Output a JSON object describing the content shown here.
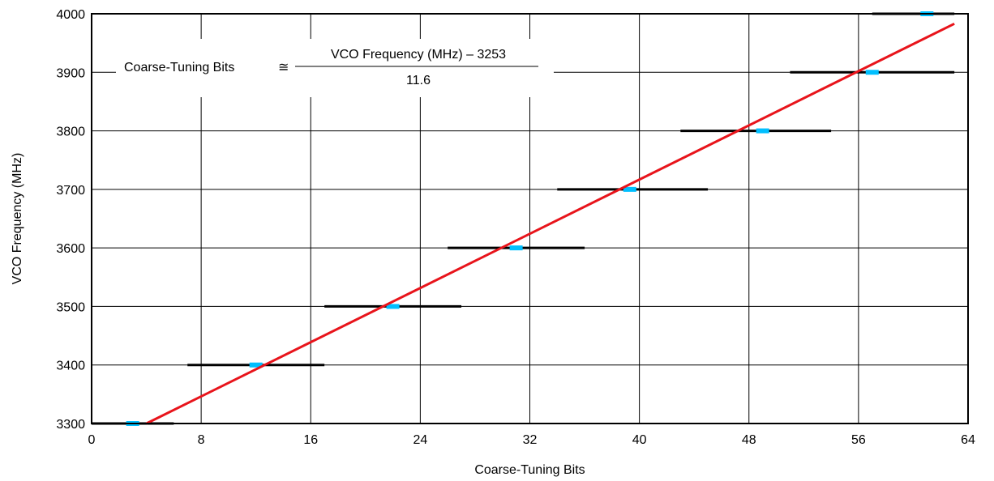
{
  "chart_data": {
    "type": "line",
    "title": "",
    "xlabel": "Coarse-Tuning Bits",
    "ylabel": "VCO Frequency (MHz)",
    "xlim": [
      0,
      64
    ],
    "ylim": [
      3300,
      4000
    ],
    "xticks": [
      0,
      8,
      16,
      24,
      32,
      40,
      48,
      56,
      64
    ],
    "yticks": [
      3300,
      3400,
      3500,
      3600,
      3700,
      3800,
      3900,
      4000
    ],
    "grid": true,
    "formula": {
      "lhs": "Coarse-Tuning Bits",
      "approx": "≅",
      "numerator": "VCO Frequency (MHz) – 3253",
      "denominator": "11.6"
    },
    "ranges": [
      {
        "frequency": 3300,
        "x_start": 0,
        "x_end": 6,
        "marker_x": 3
      },
      {
        "frequency": 3400,
        "x_start": 7,
        "x_end": 17,
        "marker_x": 12
      },
      {
        "frequency": 3500,
        "x_start": 17,
        "x_end": 27,
        "marker_x": 22
      },
      {
        "frequency": 3600,
        "x_start": 26,
        "x_end": 36,
        "marker_x": 31
      },
      {
        "frequency": 3700,
        "x_start": 34,
        "x_end": 45,
        "marker_x": 39.3
      },
      {
        "frequency": 3800,
        "x_start": 43,
        "x_end": 54,
        "marker_x": 49
      },
      {
        "frequency": 3900,
        "x_start": 51,
        "x_end": 63,
        "marker_x": 57
      },
      {
        "frequency": 4000,
        "x_start": 57,
        "x_end": 63,
        "marker_x": 61
      }
    ],
    "fit_line": {
      "x": [
        4,
        63
      ],
      "y": [
        3300,
        3983
      ]
    },
    "colors": {
      "range": "#000000",
      "marker": "#00bfff",
      "fit": "#e8141b",
      "grid": "#000000"
    }
  }
}
